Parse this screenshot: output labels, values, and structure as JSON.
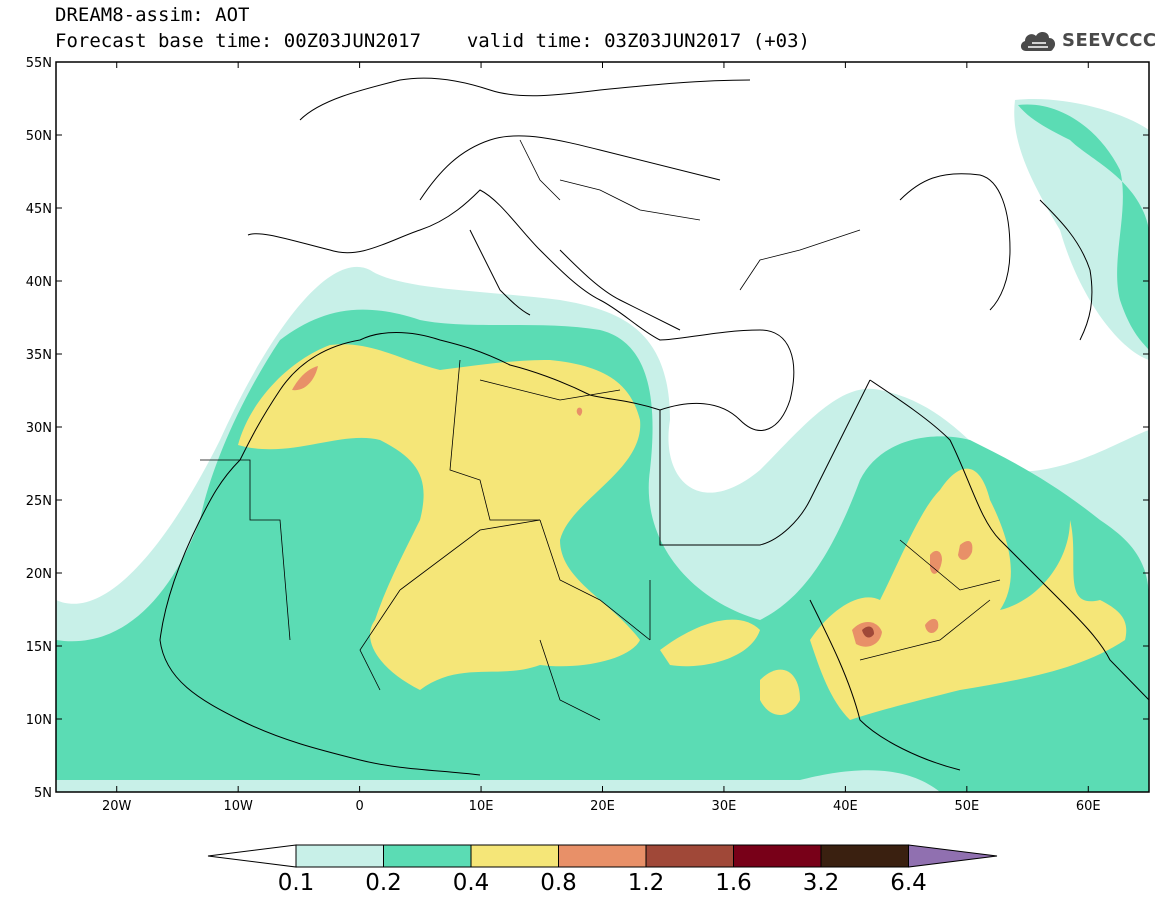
{
  "title": {
    "line1": "DREAM8-assim: AOT",
    "base_label": "Forecast base time: 00Z03JUN2017",
    "valid_label": "valid time: 03Z03JUN2017 (+03)"
  },
  "logo": {
    "icon": "cloud-icon",
    "text": "SEEVCCC"
  },
  "map": {
    "variable": "AOT",
    "lat_ticks": [
      "55N",
      "50N",
      "45N",
      "40N",
      "35N",
      "30N",
      "25N",
      "20N",
      "15N",
      "10N",
      "5N"
    ],
    "lon_ticks": [
      "20W",
      "10W",
      "0",
      "10E",
      "20E",
      "30E",
      "40E",
      "50E",
      "60E"
    ],
    "lat_range": [
      5,
      55
    ],
    "lon_range": [
      -25,
      65
    ]
  },
  "colorbar": {
    "labels": [
      "0.1",
      "0.2",
      "0.4",
      "0.8",
      "1.2",
      "1.6",
      "3.2",
      "6.4"
    ],
    "colors": [
      "#c8f0e8",
      "#5bdcb4",
      "#f5e678",
      "#e89068",
      "#a04838",
      "#780018",
      "#3a2010",
      "#9070b0"
    ]
  }
}
